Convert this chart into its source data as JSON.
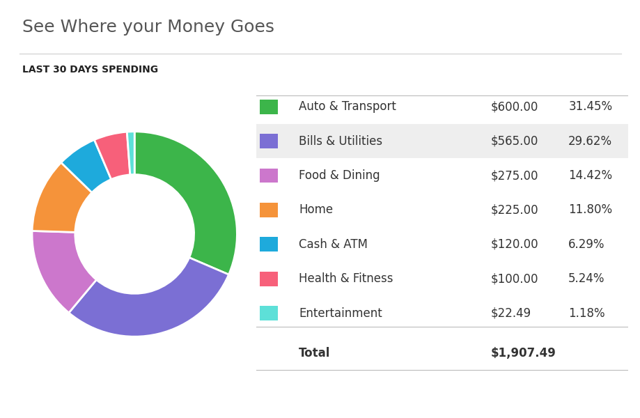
{
  "title": "See Where your Money Goes",
  "subtitle": "LAST 30 DAYS SPENDING",
  "categories": [
    "Auto & Transport",
    "Bills & Utilities",
    "Food & Dining",
    "Home",
    "Cash & ATM",
    "Health & Fitness",
    "Entertainment"
  ],
  "values": [
    600.0,
    565.0,
    275.0,
    225.0,
    120.0,
    100.0,
    22.49
  ],
  "percentages": [
    "31.45%",
    "29.62%",
    "14.42%",
    "11.80%",
    "6.29%",
    "5.24%",
    "1.18%"
  ],
  "amounts": [
    "$600.00",
    "$565.00",
    "$275.00",
    "$225.00",
    "$120.00",
    "$100.00",
    "$22.49"
  ],
  "total": "$1,907.49",
  "colors": [
    "#3cb54a",
    "#7b6fd4",
    "#cc77cc",
    "#f5933a",
    "#1eaadc",
    "#f7607a",
    "#5de0d8"
  ],
  "background_color": "#ffffff",
  "title_color": "#555555",
  "subtitle_color": "#222222",
  "text_color": "#333333",
  "title_fontsize": 18,
  "subtitle_fontsize": 10,
  "table_fontsize": 12
}
